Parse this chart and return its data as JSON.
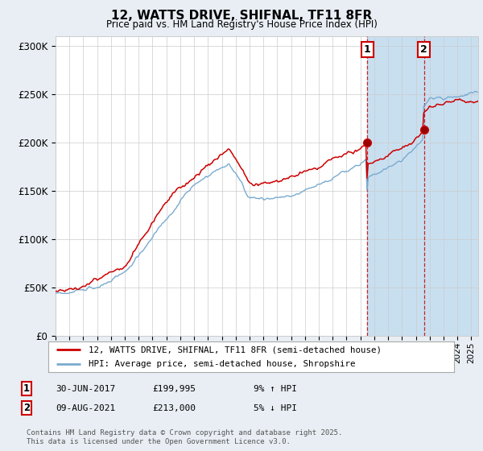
{
  "title": "12, WATTS DRIVE, SHIFNAL, TF11 8FR",
  "subtitle": "Price paid vs. HM Land Registry's House Price Index (HPI)",
  "ylabel_ticks": [
    "£0",
    "£50K",
    "£100K",
    "£150K",
    "£200K",
    "£250K",
    "£300K"
  ],
  "ytick_vals": [
    0,
    50000,
    100000,
    150000,
    200000,
    250000,
    300000
  ],
  "ylim": [
    0,
    310000
  ],
  "xlim_start": 1995.0,
  "xlim_end": 2025.5,
  "line1_color": "#cc0000",
  "line2_color": "#7aabcf",
  "vline_color": "#cc0000",
  "vline1_x": 2017.5,
  "vline2_x": 2021.6,
  "marker1_x": 2017.5,
  "marker1_y": 199995,
  "marker2_x": 2021.6,
  "marker2_y": 213000,
  "annotation1_label": "1",
  "annotation2_label": "2",
  "legend_line1": "12, WATTS DRIVE, SHIFNAL, TF11 8FR (semi-detached house)",
  "legend_line2": "HPI: Average price, semi-detached house, Shropshire",
  "sale1_date": "30-JUN-2017",
  "sale1_price": "£199,995",
  "sale1_pct": "9% ↑ HPI",
  "sale2_date": "09-AUG-2021",
  "sale2_price": "£213,000",
  "sale2_pct": "5% ↓ HPI",
  "footer": "Contains HM Land Registry data © Crown copyright and database right 2025.\nThis data is licensed under the Open Government Licence v3.0.",
  "background_color": "#e8eef4",
  "plot_bg_color": "#ffffff",
  "grid_color": "#cccccc",
  "span_color": "#c8dff0"
}
